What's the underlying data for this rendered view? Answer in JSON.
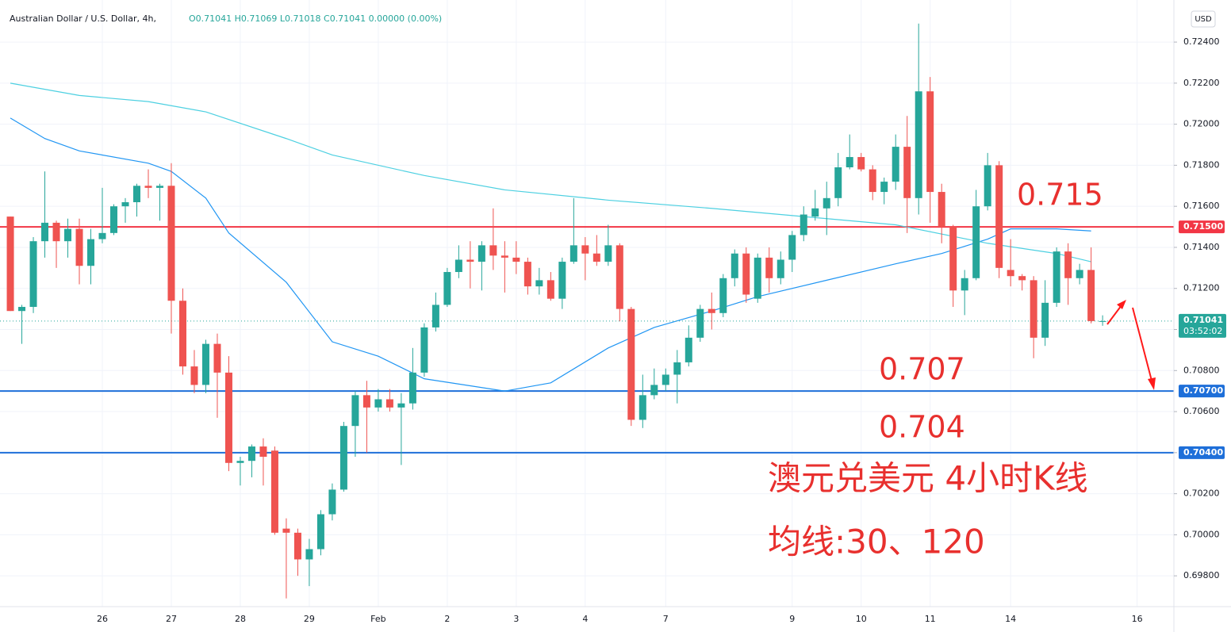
{
  "chart_data": {
    "type": "candlestick",
    "title": "Australian Dollar / U.S. Dollar, 4h,",
    "header_values": "O0.71041 H0.71069 L0.71018 C0.71041 0.00000 (0.00%)",
    "currency_button": "USD",
    "up_color": "#26a69a",
    "down_color": "#ef5350",
    "xlim": [
      -0.9,
      101.2
    ],
    "ylim": [
      0.6965,
      0.72605
    ],
    "xticks": [
      {
        "value": 8,
        "label": "26"
      },
      {
        "value": 14,
        "label": "27"
      },
      {
        "value": 20,
        "label": "28"
      },
      {
        "value": 26,
        "label": "29"
      },
      {
        "value": 32,
        "label": "Feb"
      },
      {
        "value": 38,
        "label": "2"
      },
      {
        "value": 44,
        "label": "3"
      },
      {
        "value": 50,
        "label": "4"
      },
      {
        "value": 57,
        "label": "7"
      },
      {
        "value": 68,
        "label": "9"
      },
      {
        "value": 74,
        "label": "10"
      },
      {
        "value": 80,
        "label": "11"
      },
      {
        "value": 87,
        "label": "14"
      },
      {
        "value": 98,
        "label": "16"
      }
    ],
    "yticks": [
      {
        "value": 0.724,
        "label": "0.72400"
      },
      {
        "value": 0.722,
        "label": "0.72200"
      },
      {
        "value": 0.72,
        "label": "0.72000"
      },
      {
        "value": 0.718,
        "label": "0.71800"
      },
      {
        "value": 0.716,
        "label": "0.71600"
      },
      {
        "value": 0.714,
        "label": "0.71400"
      },
      {
        "value": 0.712,
        "label": "0.71200"
      },
      {
        "value": 0.71,
        "label": "0.71000"
      },
      {
        "value": 0.708,
        "label": "0.70800"
      },
      {
        "value": 0.706,
        "label": "0.70600"
      },
      {
        "value": 0.704,
        "label": "0.70400"
      },
      {
        "value": 0.702,
        "label": "0.70200"
      },
      {
        "value": 0.7,
        "label": "0.70000"
      },
      {
        "value": 0.698,
        "label": "0.69800"
      }
    ],
    "candles": {
      "open": [
        0.7155,
        0.7109,
        0.7111,
        0.7143,
        0.7152,
        0.7143,
        0.7149,
        0.7131,
        0.7144,
        0.7147,
        0.716,
        0.7162,
        0.717,
        0.7169,
        0.717,
        0.7114,
        0.7082,
        0.7073,
        0.7093,
        0.7079,
        0.7035,
        0.7036,
        0.7043,
        0.7041,
        0.7003,
        0.7001,
        0.6988,
        0.6993,
        0.701,
        0.7022,
        0.7053,
        0.7068,
        0.7062,
        0.7066,
        0.7062,
        0.7064,
        0.7079,
        0.7101,
        0.7112,
        0.7128,
        0.7134,
        0.7133,
        0.7141,
        0.7136,
        0.7135,
        0.7133,
        0.7121,
        0.7124,
        0.7115,
        0.7133,
        0.7141,
        0.7137,
        0.7133,
        0.7141,
        0.711,
        0.7056,
        0.7068,
        0.7073,
        0.7078,
        0.7084,
        0.7096,
        0.711,
        0.7108,
        0.7125,
        0.7137,
        0.7115,
        0.7135,
        0.7125,
        0.7134,
        0.7146,
        0.7155,
        0.7159,
        0.7164,
        0.7179,
        0.7184,
        0.7178,
        0.7167,
        0.7172,
        0.7189,
        0.7164,
        0.7216,
        0.7167,
        0.715,
        0.7119,
        0.7125,
        0.716,
        0.718,
        0.7129,
        0.7126,
        0.7124,
        0.7096,
        0.7113,
        0.7138,
        0.7125,
        0.7129,
        0.71041
      ],
      "high": [
        0.7155,
        0.7112,
        0.7145,
        0.7177,
        0.7153,
        0.7154,
        0.7154,
        0.7149,
        0.7169,
        0.7161,
        0.7164,
        0.7171,
        0.7178,
        0.7171,
        0.7181,
        0.712,
        0.709,
        0.7095,
        0.7098,
        0.7087,
        0.7038,
        0.7044,
        0.7047,
        0.7043,
        0.7008,
        0.7003,
        0.6998,
        0.7012,
        0.7025,
        0.7055,
        0.707,
        0.7075,
        0.7071,
        0.7071,
        0.7069,
        0.7091,
        0.7103,
        0.7118,
        0.713,
        0.7141,
        0.7143,
        0.7143,
        0.7159,
        0.7143,
        0.7143,
        0.7135,
        0.713,
        0.7128,
        0.7135,
        0.7164,
        0.7145,
        0.7146,
        0.7151,
        0.7142,
        0.7111,
        0.7078,
        0.7081,
        0.7081,
        0.709,
        0.7102,
        0.7112,
        0.7118,
        0.7127,
        0.7139,
        0.714,
        0.7137,
        0.714,
        0.7138,
        0.7148,
        0.716,
        0.7168,
        0.7172,
        0.7186,
        0.7195,
        0.7186,
        0.718,
        0.7174,
        0.7195,
        0.7204,
        0.7249,
        0.7223,
        0.7171,
        0.7151,
        0.7129,
        0.7168,
        0.7186,
        0.7182,
        0.7144,
        0.7127,
        0.7126,
        0.7124,
        0.714,
        0.7142,
        0.7132,
        0.714,
        0.71069
      ],
      "low": [
        0.7109,
        0.7093,
        0.7108,
        0.7135,
        0.713,
        0.7135,
        0.7122,
        0.7122,
        0.7142,
        0.7146,
        0.7152,
        0.7155,
        0.7164,
        0.7153,
        0.7098,
        0.7078,
        0.7069,
        0.7069,
        0.7057,
        0.7031,
        0.7024,
        0.7028,
        0.7024,
        0.7,
        0.6969,
        0.698,
        0.6975,
        0.699,
        0.7007,
        0.7021,
        0.7038,
        0.704,
        0.706,
        0.706,
        0.7034,
        0.7061,
        0.7077,
        0.7099,
        0.7111,
        0.7125,
        0.712,
        0.7119,
        0.7129,
        0.7118,
        0.7127,
        0.7117,
        0.7117,
        0.7114,
        0.711,
        0.7132,
        0.7124,
        0.7131,
        0.7131,
        0.7104,
        0.7053,
        0.7052,
        0.7066,
        0.707,
        0.7064,
        0.7082,
        0.7094,
        0.71,
        0.7106,
        0.7121,
        0.7113,
        0.7113,
        0.7118,
        0.7122,
        0.7128,
        0.7143,
        0.7153,
        0.7146,
        0.716,
        0.7178,
        0.7177,
        0.7163,
        0.7161,
        0.7168,
        0.7147,
        0.7156,
        0.7152,
        0.7142,
        0.7111,
        0.7107,
        0.7124,
        0.7158,
        0.7125,
        0.7121,
        0.7119,
        0.7086,
        0.7092,
        0.7111,
        0.7112,
        0.7122,
        0.7103,
        0.71018
      ],
      "close": [
        0.7109,
        0.7111,
        0.7143,
        0.7152,
        0.7143,
        0.7149,
        0.7131,
        0.7144,
        0.7147,
        0.716,
        0.7162,
        0.717,
        0.7169,
        0.717,
        0.7114,
        0.7082,
        0.7073,
        0.7093,
        0.7079,
        0.7035,
        0.7036,
        0.7043,
        0.7038,
        0.7001,
        0.7001,
        0.6988,
        0.6993,
        0.701,
        0.7022,
        0.7053,
        0.7068,
        0.7062,
        0.7066,
        0.7062,
        0.7064,
        0.7079,
        0.7101,
        0.7112,
        0.7128,
        0.7134,
        0.7133,
        0.7141,
        0.7136,
        0.7135,
        0.7133,
        0.7121,
        0.7124,
        0.7115,
        0.7133,
        0.7141,
        0.7137,
        0.7133,
        0.7141,
        0.711,
        0.7056,
        0.7068,
        0.7073,
        0.7078,
        0.7084,
        0.7096,
        0.711,
        0.7108,
        0.7125,
        0.7137,
        0.7117,
        0.7135,
        0.7125,
        0.7134,
        0.7146,
        0.7156,
        0.7159,
        0.7164,
        0.7179,
        0.7184,
        0.7178,
        0.7167,
        0.7172,
        0.7189,
        0.7164,
        0.7216,
        0.7167,
        0.715,
        0.7119,
        0.7125,
        0.716,
        0.718,
        0.713,
        0.7126,
        0.7124,
        0.7096,
        0.7113,
        0.7138,
        0.7125,
        0.7129,
        0.71041,
        0.71041
      ]
    },
    "moving_averages": [
      {
        "color": "#2196f3",
        "x": [
          0,
          3,
          6,
          12,
          14,
          17,
          19,
          24,
          28,
          32,
          36,
          43,
          47,
          52,
          56,
          61,
          65,
          71,
          77,
          81,
          85,
          87,
          91,
          94
        ],
        "values": [
          0.7203,
          0.7193,
          0.7187,
          0.7181,
          0.7177,
          0.7164,
          0.7147,
          0.7123,
          0.7094,
          0.7087,
          0.7076,
          0.707,
          0.7074,
          0.7091,
          0.7101,
          0.7109,
          0.7116,
          0.7124,
          0.7132,
          0.7137,
          0.7144,
          0.7149,
          0.7149,
          0.7148
        ]
      },
      {
        "color": "#4dd0e1",
        "x": [
          0,
          6,
          12,
          17,
          24,
          28,
          36,
          43,
          52,
          61,
          69,
          77,
          85,
          91,
          94
        ],
        "values": [
          0.722,
          0.7214,
          0.7211,
          0.7206,
          0.7193,
          0.7185,
          0.7175,
          0.7168,
          0.7163,
          0.7159,
          0.7155,
          0.7151,
          0.7142,
          0.7137,
          0.7133
        ]
      }
    ],
    "hlines": [
      {
        "value": 0.715,
        "label": "0.71500",
        "color": "#f23645"
      },
      {
        "value": 0.707,
        "label": "0.70700",
        "color": "#1e6fd9"
      },
      {
        "value": 0.704,
        "label": "0.70400",
        "color": "#1e6fd9"
      }
    ],
    "last_price": {
      "value": 0.71041,
      "label": "0.71041",
      "countdown": "03:52:02",
      "color": "#26a69a"
    },
    "annotations": [
      "0.715",
      "0.707",
      "0.704",
      "澳元兑美元 4小时K线",
      "均线:30、120"
    ]
  }
}
